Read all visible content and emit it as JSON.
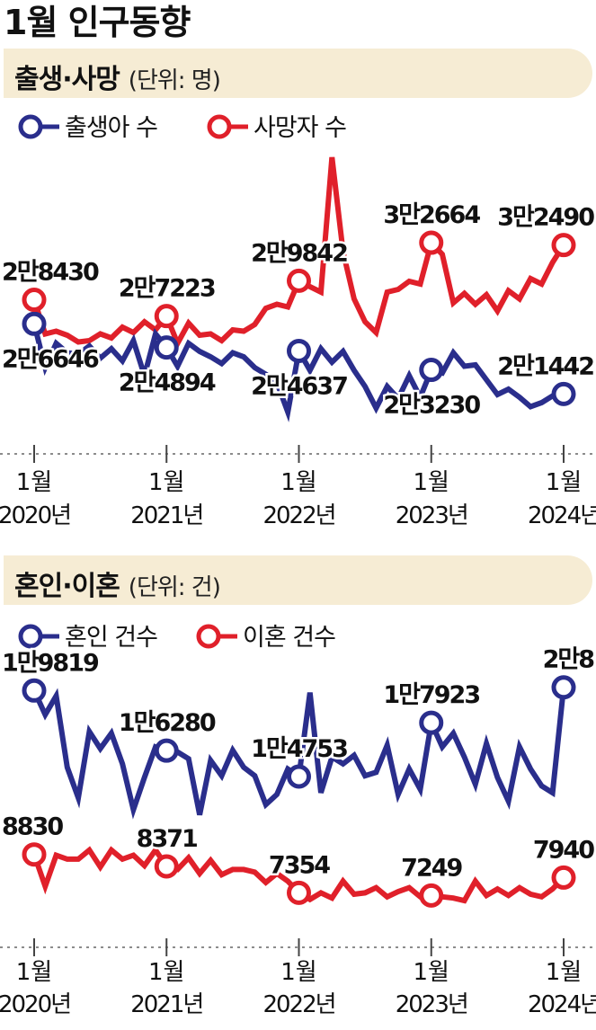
{
  "page": {
    "title": "1월 인구동향"
  },
  "chart_data": [
    {
      "type": "line",
      "title": "출생·사망",
      "unit": "(단위: 명)",
      "legend_placement": "top-left",
      "x_tick_labels": [
        {
          "month": "1월",
          "year": "2020년"
        },
        {
          "month": "1월",
          "year": "2021년"
        },
        {
          "month": "1월",
          "year": "2022년"
        },
        {
          "month": "1월",
          "year": "2023년"
        },
        {
          "month": "1월",
          "year": "2024년"
        }
      ],
      "series": [
        {
          "name": "출생아 수",
          "color": "#2a2e8c",
          "values": [
            26646,
            23400,
            25200,
            24500,
            24400,
            25000,
            24100,
            24800,
            23900,
            25400,
            22800,
            25900,
            24894,
            23500,
            25200,
            24600,
            24200,
            23700,
            24500,
            24200,
            23400,
            22900,
            22300,
            20100,
            24637,
            23200,
            24800,
            23800,
            24600,
            23200,
            22000,
            20400,
            22000,
            21100,
            22800,
            21200,
            23230,
            23000,
            24500,
            23500,
            23600,
            22500,
            21400,
            21800,
            21200,
            20500,
            20800,
            21300,
            21442
          ],
          "highlights": [
            {
              "index": 0,
              "label": "2만6646",
              "pos": "below"
            },
            {
              "index": 12,
              "label": "2만4894",
              "pos": "below"
            },
            {
              "index": 24,
              "label": "2만4637",
              "pos": "below"
            },
            {
              "index": 36,
              "label": "2만3230",
              "pos": "below"
            },
            {
              "index": 48,
              "label": "2만1442",
              "pos": "above"
            }
          ]
        },
        {
          "name": "사망자 수",
          "color": "#e0202a",
          "values": [
            28430,
            25900,
            26100,
            25800,
            25300,
            25400,
            25900,
            25600,
            26400,
            26000,
            26800,
            26200,
            27223,
            25200,
            26700,
            25800,
            25900,
            25400,
            26200,
            26100,
            26600,
            27800,
            28100,
            27900,
            29842,
            29400,
            29000,
            39000,
            32000,
            28500,
            26800,
            26000,
            29000,
            29200,
            29800,
            29600,
            32664,
            31800,
            28200,
            28900,
            28100,
            28800,
            27600,
            29100,
            28500,
            30000,
            29600,
            31200,
            32490
          ],
          "highlights": [
            {
              "index": 0,
              "label": "2만8430",
              "pos": "above"
            },
            {
              "index": 12,
              "label": "2만7223",
              "pos": "above"
            },
            {
              "index": 24,
              "label": "2만9842",
              "pos": "above"
            },
            {
              "index": 36,
              "label": "3만2664",
              "pos": "above"
            },
            {
              "index": 48,
              "label": "3만2490",
              "pos": "above"
            }
          ]
        }
      ]
    },
    {
      "type": "line",
      "title": "혼인·이혼",
      "unit": "(단위: 건)",
      "legend_placement": "top-left",
      "x_tick_labels": [
        {
          "month": "1월",
          "year": "2020년"
        },
        {
          "month": "1월",
          "year": "2021년"
        },
        {
          "month": "1월",
          "year": "2022년"
        },
        {
          "month": "1월",
          "year": "2023년"
        },
        {
          "month": "1월",
          "year": "2024년"
        }
      ],
      "series": [
        {
          "name": "혼인 건수",
          "color": "#2a2e8c",
          "values": [
            19819,
            18400,
            19500,
            15300,
            13500,
            17400,
            16400,
            17300,
            15500,
            12800,
            14700,
            16500,
            16280,
            16200,
            15800,
            12500,
            15700,
            14800,
            16300,
            15300,
            14800,
            13100,
            13700,
            15200,
            14753,
            19700,
            13800,
            15900,
            15500,
            16000,
            14800,
            15000,
            16600,
            13700,
            15200,
            14000,
            17923,
            16500,
            17300,
            15900,
            14300,
            16700,
            14700,
            13300,
            16500,
            15200,
            14200,
            13800,
            20008
          ],
          "highlights": [
            {
              "index": 0,
              "label": "1만9819",
              "pos": "above"
            },
            {
              "index": 12,
              "label": "1만6280",
              "pos": "above"
            },
            {
              "index": 24,
              "label": "1만4753",
              "pos": "above"
            },
            {
              "index": 36,
              "label": "1만7923",
              "pos": "above"
            },
            {
              "index": 48,
              "label": "2만8",
              "pos": "above"
            }
          ]
        },
        {
          "name": "이혼 건수",
          "color": "#e0202a",
          "values": [
            8830,
            7600,
            8800,
            8650,
            8650,
            9000,
            8350,
            9000,
            8650,
            8800,
            8400,
            9000,
            8371,
            8250,
            8700,
            8100,
            8600,
            8050,
            8250,
            8250,
            8150,
            7750,
            8100,
            7800,
            7354,
            7100,
            7350,
            7150,
            7800,
            7300,
            7350,
            7550,
            7200,
            7400,
            7550,
            7200,
            7249,
            7200,
            7150,
            7050,
            7800,
            7250,
            7500,
            7250,
            7550,
            7300,
            7200,
            7500,
            7940
          ],
          "highlights": [
            {
              "index": 0,
              "label": "8830",
              "pos": "above"
            },
            {
              "index": 12,
              "label": "8371",
              "pos": "above"
            },
            {
              "index": 24,
              "label": "7354",
              "pos": "above"
            },
            {
              "index": 36,
              "label": "7249",
              "pos": "above"
            },
            {
              "index": 48,
              "label": "7940",
              "pos": "above"
            }
          ]
        }
      ]
    }
  ]
}
